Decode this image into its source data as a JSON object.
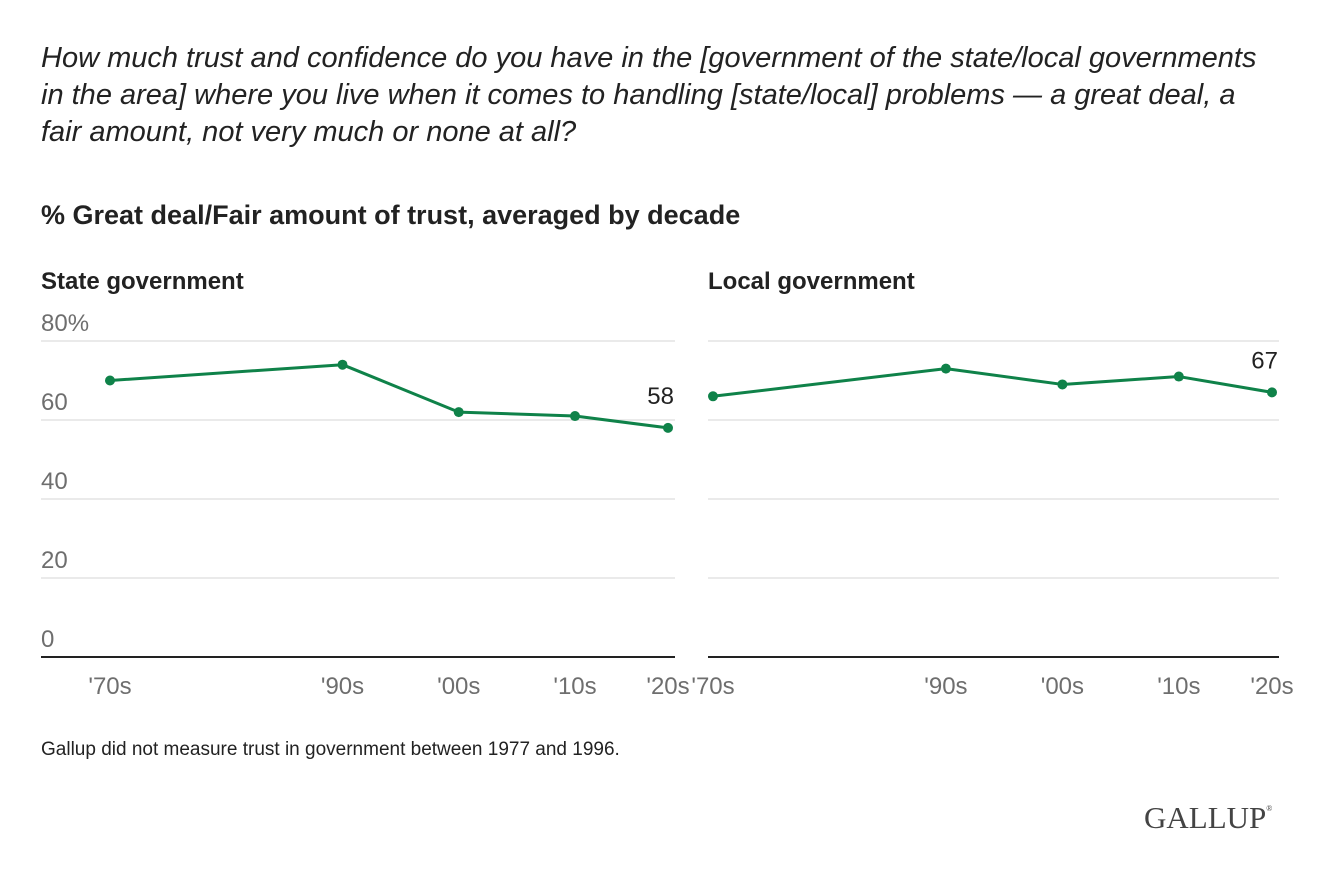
{
  "question": "How much trust and confidence do you have in the [government of the state/local governments in the area] where you live when it comes to handling [state/local] problems — a great deal, a fair amount, not very much or none at all?",
  "subtitle": "% Great deal/Fair amount of trust, averaged by decade",
  "note": "Gallup did not measure trust in government between 1977 and 1996.",
  "logo": "GALLUP",
  "colors": {
    "line": "#0f8249",
    "grid": "#e3e3e3",
    "axis": "#222222"
  },
  "chart_data": [
    {
      "type": "line",
      "title": "State government",
      "categories": [
        "'70s",
        "'90s",
        "'00s",
        "'10s",
        "'20s"
      ],
      "x_positions": [
        1975,
        1995,
        2005,
        2015,
        2023
      ],
      "series": [
        {
          "name": "State government",
          "values": [
            70,
            74,
            62,
            61,
            58
          ]
        }
      ],
      "yticks": [
        0,
        20,
        40,
        60,
        80
      ],
      "ytick_labels": [
        "0",
        "20",
        "40",
        "60",
        "80%"
      ],
      "ylim": [
        0,
        80
      ],
      "grid": true,
      "end_label": "58",
      "xlabel": "",
      "ylabel": ""
    },
    {
      "type": "line",
      "title": "Local government",
      "categories": [
        "'70s",
        "'90s",
        "'00s",
        "'10s",
        "'20s"
      ],
      "x_positions": [
        1975,
        1995,
        2005,
        2015,
        2023
      ],
      "series": [
        {
          "name": "Local government",
          "values": [
            66,
            73,
            69,
            71,
            67
          ]
        }
      ],
      "yticks": [
        0,
        20,
        40,
        60,
        80
      ],
      "ylim": [
        0,
        80
      ],
      "grid": true,
      "end_label": "67",
      "xlabel": "",
      "ylabel": ""
    }
  ]
}
